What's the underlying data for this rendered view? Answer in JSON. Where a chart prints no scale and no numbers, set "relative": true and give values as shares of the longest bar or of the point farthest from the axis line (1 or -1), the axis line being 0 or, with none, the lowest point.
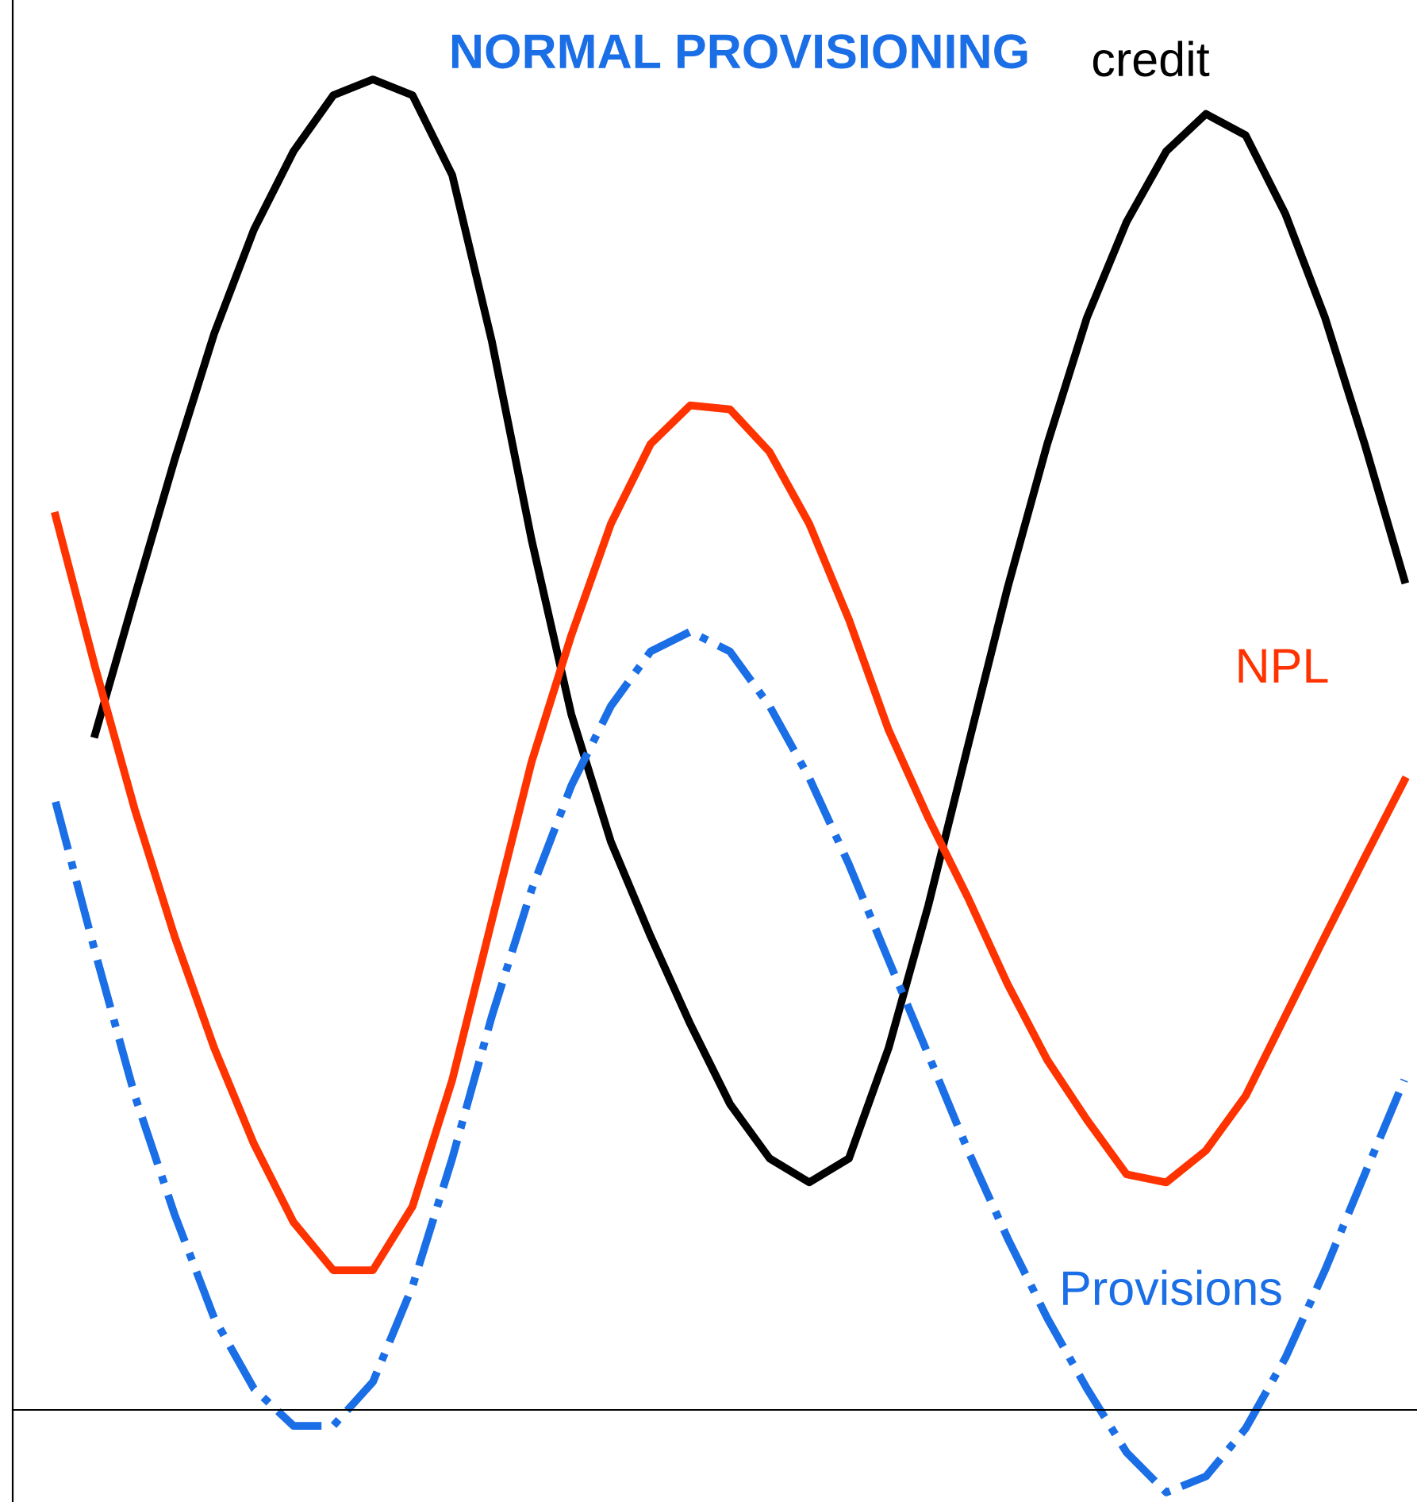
{
  "chart_data": {
    "type": "line",
    "title": "NORMAL PROVISIONING",
    "relative": true,
    "legend": false,
    "grid": false,
    "marker": "none",
    "categories": [
      null,
      null,
      null,
      null,
      null,
      null,
      null,
      null,
      null,
      null,
      null,
      null,
      null,
      null,
      null,
      null,
      null,
      null,
      null,
      null,
      null,
      null,
      null,
      null,
      null,
      null,
      null,
      null,
      null,
      null,
      null,
      null,
      null,
      null,
      null
    ],
    "series": [
      {
        "name": "credit",
        "color": "#000000",
        "line_style": "solid",
        "values": [
          null,
          0.508,
          0.612,
          0.714,
          0.809,
          0.887,
          0.946,
          0.988,
          1.0,
          0.988,
          0.928,
          0.803,
          0.654,
          0.523,
          0.427,
          0.356,
          0.29,
          0.23,
          0.189,
          0.171,
          0.189,
          0.272,
          0.379,
          0.499,
          0.618,
          0.726,
          0.821,
          0.893,
          0.946,
          0.974,
          0.958,
          0.899,
          0.821,
          0.726,
          0.624
        ]
      },
      {
        "name": "NPL",
        "color": "#ff3300",
        "line_style": "solid",
        "values": [
          0.672,
          0.558,
          0.451,
          0.356,
          0.272,
          0.2,
          0.141,
          0.105,
          0.105,
          0.153,
          0.248,
          0.368,
          0.487,
          0.582,
          0.666,
          0.726,
          0.755,
          0.752,
          0.72,
          0.666,
          0.594,
          0.511,
          0.445,
          0.385,
          0.32,
          0.263,
          0.218,
          0.177,
          0.171,
          0.195,
          0.236,
          0.296,
          0.356,
          0.415,
          0.473
        ]
      },
      {
        "name": "Provisions",
        "color": "#1a6ee6",
        "line_style": "dashdot",
        "values": [
          0.457,
          0.344,
          0.236,
          0.147,
          0.069,
          0.016,
          -0.012,
          -0.012,
          0.021,
          0.093,
          0.189,
          0.296,
          0.391,
          0.469,
          0.529,
          0.57,
          0.585,
          0.57,
          0.529,
          0.475,
          0.41,
          0.338,
          0.267,
          0.195,
          0.129,
          0.069,
          0.016,
          -0.032,
          -0.062,
          -0.05,
          -0.014,
          0.039,
          0.105,
          0.177,
          0.248
        ]
      }
    ]
  }
}
